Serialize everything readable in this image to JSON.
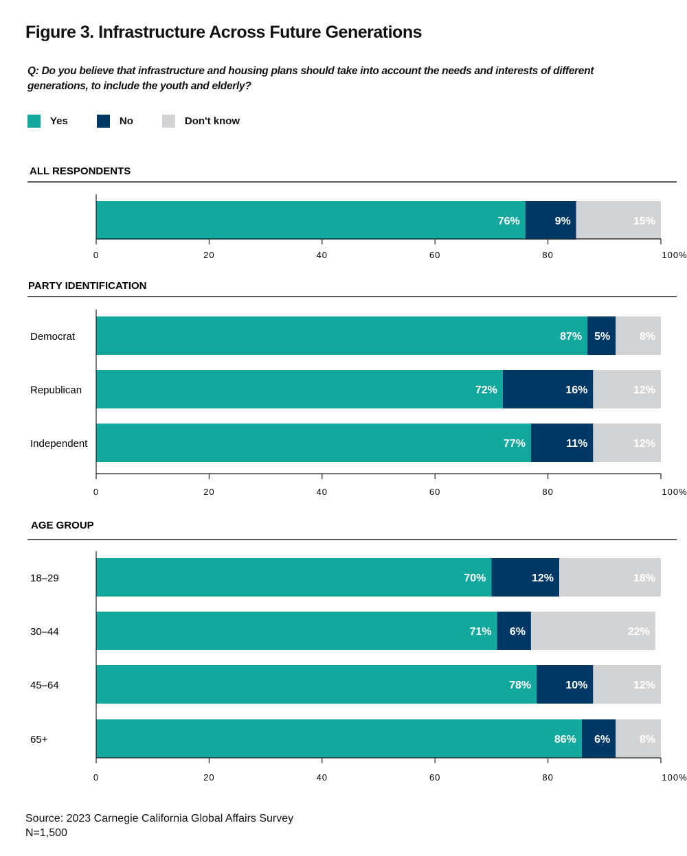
{
  "title": "Figure 3. Infrastructure Across Future Generations",
  "question": "Q: Do you believe that infrastructure and housing plans should take into account the needs and interests of different generations, to include the youth and elderly?",
  "legend": [
    {
      "label": "Yes",
      "color": "#13a89e"
    },
    {
      "label": "No",
      "color": "#003865"
    },
    {
      "label": "Don't know",
      "color": "#d1d3d4"
    }
  ],
  "source": "Source: 2023 Carnegie California Global Affairs Survey",
  "n": "N=1,500",
  "chart_data": [
    {
      "type": "bar",
      "orientation": "horizontal",
      "stacked": true,
      "title": "ALL RESPONDENTS",
      "categories": [
        ""
      ],
      "series": [
        {
          "name": "Yes",
          "values": [
            76
          ]
        },
        {
          "name": "No",
          "values": [
            9
          ]
        },
        {
          "name": "Don't know",
          "values": [
            15
          ]
        }
      ],
      "xlim": [
        0,
        100
      ],
      "xticks": [
        "0",
        "20",
        "40",
        "60",
        "80",
        "100%"
      ]
    },
    {
      "type": "bar",
      "orientation": "horizontal",
      "stacked": true,
      "title": "PARTY IDENTIFICATION",
      "categories": [
        "Democrat",
        "Republican",
        "Independent"
      ],
      "series": [
        {
          "name": "Yes",
          "values": [
            87,
            72,
            77
          ]
        },
        {
          "name": "No",
          "values": [
            5,
            16,
            11
          ]
        },
        {
          "name": "Don't know",
          "values": [
            8,
            12,
            12
          ]
        }
      ],
      "xlim": [
        0,
        100
      ],
      "xticks": [
        "0",
        "20",
        "40",
        "60",
        "80",
        "100%"
      ]
    },
    {
      "type": "bar",
      "orientation": "horizontal",
      "stacked": true,
      "title": "AGE GROUP",
      "categories": [
        "18–29",
        "30–44",
        "45–64",
        "65+"
      ],
      "series": [
        {
          "name": "Yes",
          "values": [
            70,
            71,
            78,
            86
          ]
        },
        {
          "name": "No",
          "values": [
            12,
            6,
            10,
            6
          ]
        },
        {
          "name": "Don't know",
          "values": [
            18,
            22,
            12,
            8
          ]
        }
      ],
      "xlim": [
        0,
        100
      ],
      "xticks": [
        "0",
        "20",
        "40",
        "60",
        "80",
        "100%"
      ]
    }
  ]
}
